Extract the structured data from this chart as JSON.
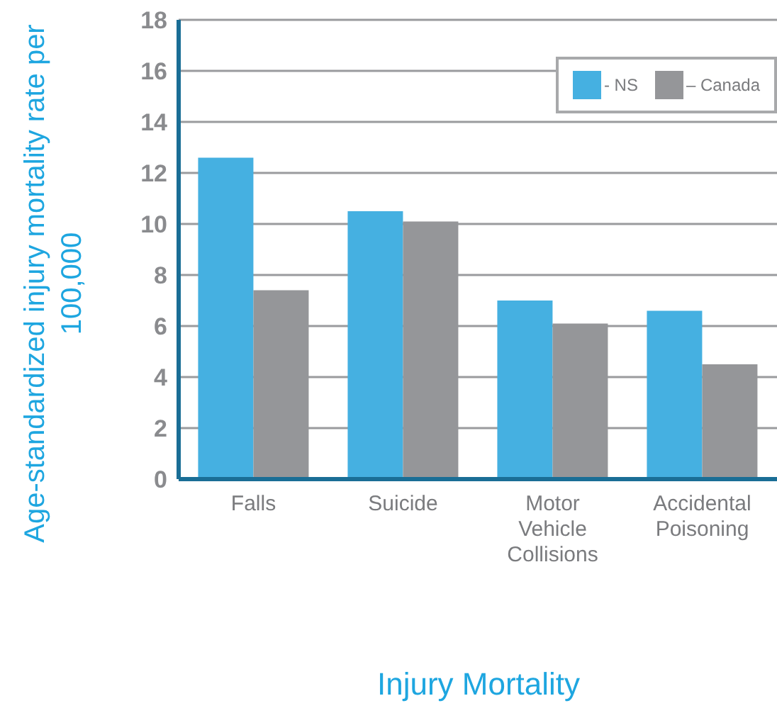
{
  "chart_data": {
    "type": "bar",
    "xlabel": "Injury Mortality",
    "ylabel": "Age-standardized injury mortality rate per 100,000",
    "categories": [
      "Falls",
      "Suicide",
      "Motor Vehicle Collisions",
      "Accidental Poisoning"
    ],
    "series": [
      {
        "name": "- NS",
        "color": "#45b0e1",
        "values": [
          12.6,
          10.5,
          7.0,
          6.6
        ]
      },
      {
        "name": "– Canada",
        "color": "#959699",
        "values": [
          7.4,
          10.1,
          6.1,
          4.5
        ]
      }
    ],
    "ylim": [
      0,
      18
    ],
    "yticks": [
      0,
      2,
      4,
      6,
      8,
      10,
      12,
      14,
      16,
      18
    ],
    "grid": "y",
    "legend": "top right"
  }
}
